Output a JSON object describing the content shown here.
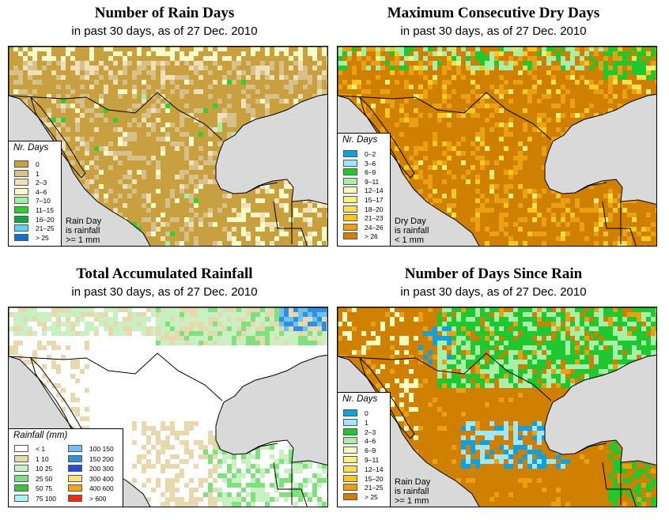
{
  "panels": [
    {
      "id": "rain-days",
      "title": "Number of Rain Days",
      "subtitle": "in past 30 days, as of  27 Dec. 2010",
      "legend_title": "Nr. Days",
      "legend_items": [
        {
          "label": "0",
          "color": "#c8a040"
        },
        {
          "label": "1",
          "color": "#d8c08a"
        },
        {
          "label": "2–3",
          "color": "#f0e0b8"
        },
        {
          "label": "4–6",
          "color": "#fafac8"
        },
        {
          "label": "7–10",
          "color": "#a0f0a0"
        },
        {
          "label": "11–15",
          "color": "#30d030"
        },
        {
          "label": "16–20",
          "color": "#10a840"
        },
        {
          "label": "21–25",
          "color": "#60d0f0"
        },
        {
          "label": "> 25",
          "color": "#1070d0"
        }
      ],
      "note": [
        "Rain Day",
        "is rainfall",
        ">= 1 mm"
      ],
      "base_color": "#c8a040"
    },
    {
      "id": "dry-days",
      "title": "Maximum Consecutive Dry Days",
      "subtitle": "in past 30 days, as of  27 Dec. 2010",
      "legend_title": "Nr. Days",
      "legend_items": [
        {
          "label": "0–2",
          "color": "#10a0e0"
        },
        {
          "label": "3–6",
          "color": "#a0e8f8"
        },
        {
          "label": "6–9",
          "color": "#20c830"
        },
        {
          "label": "9–11",
          "color": "#a8f0a8"
        },
        {
          "label": "12–14",
          "color": "#fafac0"
        },
        {
          "label": "15–17",
          "color": "#faf080"
        },
        {
          "label": "18–20",
          "color": "#fae050"
        },
        {
          "label": "21–23",
          "color": "#f8c820"
        },
        {
          "label": "24–26",
          "color": "#eaa010"
        },
        {
          "label": "> 26",
          "color": "#d08000"
        }
      ],
      "note": [
        "Dry Day",
        "is rainfall",
        "< 1 mm"
      ],
      "base_color": "#d08000"
    },
    {
      "id": "total-rainfall",
      "title": "Total Accumulated Rainfall",
      "subtitle": "in past 30 days, as of  27 Dec. 2010",
      "legend_title": "Rainfall (mm)",
      "legend_items": [
        {
          "label": "< 1",
          "color": "#ffffff"
        },
        {
          "label": "1    10",
          "color": "#e8d8b0"
        },
        {
          "label": "10    25",
          "color": "#c8f0c0"
        },
        {
          "label": "25    50",
          "color": "#80e080"
        },
        {
          "label": "50    75",
          "color": "#40c040"
        },
        {
          "label": "75    100",
          "color": "#b0f0f8"
        },
        {
          "label": "100    150",
          "color": "#70c0f0"
        },
        {
          "label": "150    200",
          "color": "#3090e0"
        },
        {
          "label": "200    300",
          "color": "#2050d0"
        },
        {
          "label": "300    400",
          "color": "#fae080"
        },
        {
          "label": "400    600",
          "color": "#f8a020"
        },
        {
          "label": "> 600",
          "color": "#e83010"
        }
      ],
      "note": [],
      "base_color": "#ffffff"
    },
    {
      "id": "days-since-rain",
      "title": "Number of Days Since Rain",
      "subtitle": "in past 30 days, as of  27 Dec. 2010",
      "legend_title": "Nr. Days",
      "legend_items": [
        {
          "label": "0",
          "color": "#10a0e0"
        },
        {
          "label": "1",
          "color": "#a0e8f8"
        },
        {
          "label": "2–3",
          "color": "#20c830"
        },
        {
          "label": "4–6",
          "color": "#a8f0a8"
        },
        {
          "label": "6–9",
          "color": "#fafac0"
        },
        {
          "label": "9–11",
          "color": "#faf080"
        },
        {
          "label": "12–14",
          "color": "#fae050"
        },
        {
          "label": "15–20",
          "color": "#f8c820"
        },
        {
          "label": "21–25",
          "color": "#eaa010"
        },
        {
          "label": "> 25",
          "color": "#d08000"
        }
      ],
      "note": [
        "Rain Day",
        "is rainfall",
        ">= 1 mm"
      ],
      "base_color": "#d08000"
    }
  ],
  "colors": {
    "ocean": "#d9d9d9",
    "border": "#000000"
  }
}
